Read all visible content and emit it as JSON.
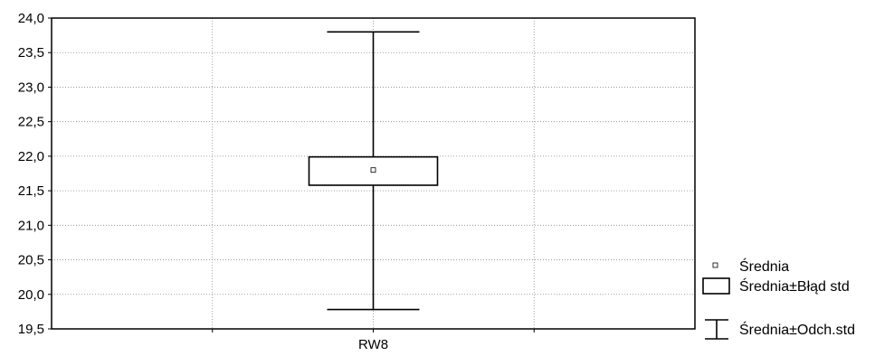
{
  "chart_data": {
    "type": "box",
    "categories": [
      "RW8"
    ],
    "ylim": [
      19.5,
      24.0
    ],
    "yticks": [
      19.5,
      20.0,
      20.5,
      21.0,
      21.5,
      22.0,
      22.5,
      23.0,
      23.5,
      24.0
    ],
    "ytick_labels": [
      "19,5",
      "20,0",
      "20,5",
      "21,0",
      "21,5",
      "22,0",
      "22,5",
      "23,0",
      "23,5",
      "24,0"
    ],
    "series": [
      {
        "category": "RW8",
        "mean": 21.8,
        "box_low": 21.58,
        "box_high": 21.99,
        "whisker_low": 19.78,
        "whisker_high": 23.8
      }
    ],
    "grid": true,
    "legend_position": "right",
    "legend": [
      {
        "symbol": "small-square-icon",
        "label": "Średnia"
      },
      {
        "symbol": "box-icon",
        "label": "Średnia±Błąd std"
      },
      {
        "symbol": "whisker-icon",
        "label": "Średnia±Odch.std"
      }
    ]
  }
}
